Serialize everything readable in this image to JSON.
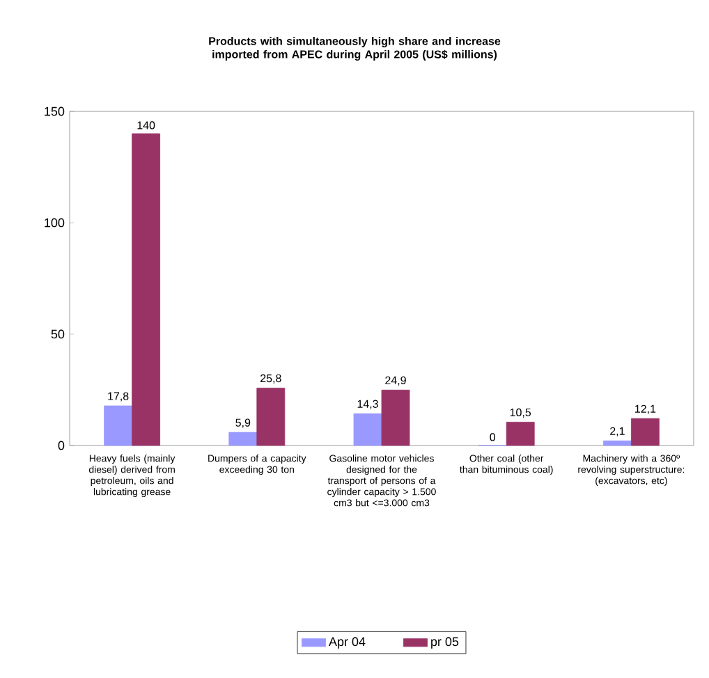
{
  "chart_data": {
    "type": "bar",
    "title": "Products with simultaneously high share and increase imported from APEC during April 2005 (US$ millions)",
    "categories": [
      "Heavy fuels (mainly diesel) derived from petroleum, oils and lubricating grease",
      "Dumpers of a capacity exceeding 30 ton",
      "Gasoline motor vehicles designed for the transport of persons of a cylinder capacity > 1.500 cm3 but <=3.000 cm3",
      "Other coal (other than bituminous coal)",
      "Machinery with a 360º revolving superstructure: (excavators, etc)"
    ],
    "series": [
      {
        "name": "Apr 04",
        "color": "#9999ff",
        "values": [
          17.8,
          5.9,
          14.3,
          0,
          2.1
        ],
        "value_labels": [
          "17,8",
          "5,9",
          "14,3",
          "0",
          "2,1"
        ]
      },
      {
        "name": "pr 05",
        "color": "#993366",
        "values": [
          140,
          25.8,
          24.9,
          10.5,
          12.1
        ],
        "value_labels": [
          "140",
          "25,8",
          "24,9",
          "10,5",
          "12,1"
        ]
      }
    ],
    "ylim": [
      0,
      150
    ],
    "yticks": [
      0,
      50,
      100,
      150
    ],
    "grid": false,
    "legend": "bottom"
  }
}
